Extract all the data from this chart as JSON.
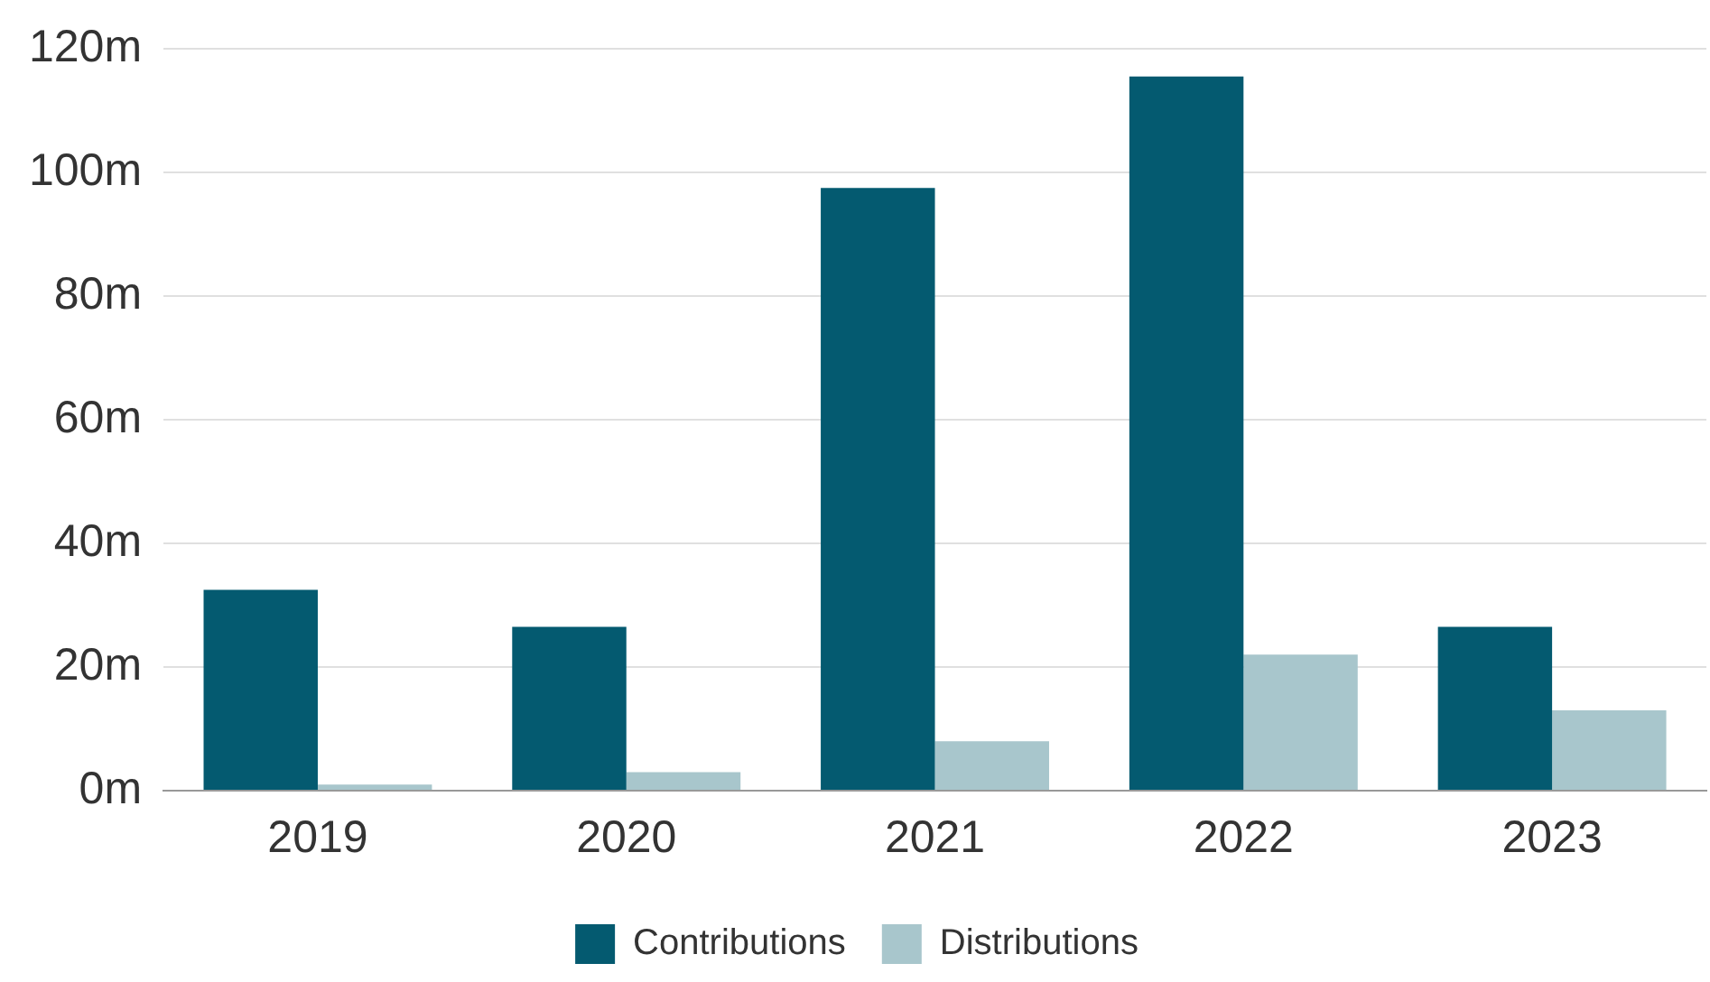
{
  "chart_data": {
    "type": "bar",
    "categories": [
      "2019",
      "2020",
      "2021",
      "2022",
      "2023"
    ],
    "series": [
      {
        "name": "Contributions",
        "color": "#045a70",
        "values": [
          32.5,
          26.5,
          97.5,
          115.5,
          26.5
        ]
      },
      {
        "name": "Distributions",
        "color": "#a8c6cc",
        "values": [
          1,
          3,
          8,
          22,
          13
        ]
      }
    ],
    "ylim": [
      0,
      120
    ],
    "yticks": [
      {
        "value": 0,
        "label": "0m"
      },
      {
        "value": 20,
        "label": "20m"
      },
      {
        "value": 40,
        "label": "40m"
      },
      {
        "value": 60,
        "label": "60m"
      },
      {
        "value": 80,
        "label": "80m"
      },
      {
        "value": 100,
        "label": "100m"
      },
      {
        "value": 120,
        "label": "120m"
      }
    ],
    "grid": "y",
    "legend": "bottom"
  }
}
